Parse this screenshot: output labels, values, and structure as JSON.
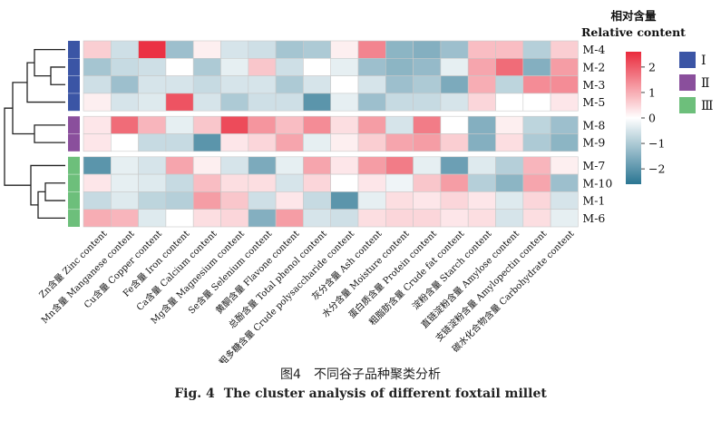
{
  "chart_data": {
    "type": "heatmap",
    "title": "",
    "rows": [
      "M-4",
      "M-2",
      "M-3",
      "M-5",
      "M-8",
      "M-9",
      "M-7",
      "M-10",
      "M-1",
      "M-6"
    ],
    "columns": [
      "Zn含量 Zinc content",
      "Mn含量 Manganese content",
      "Cu含量 Copper content",
      "Fe含量 Iron content",
      "Ca含量 Calcium content",
      "Mg含量 Magnesium content",
      "Se含量 Selenium content",
      "黄酮含量 Flavone content",
      "总酚含量 Total phenol content",
      "粗多糖含量 Crude polysaccharide content",
      "灰分含量 Ash content",
      "水分含量 Moisture content",
      "蛋白质含量 Protein content",
      "粗脂肪含量 Crude fat content",
      "淀粉含量 Starch content",
      "直链淀粉含量 Amylose content",
      "支链淀粉含量 Amylopectin content",
      "碳水化合物含量 Carbohydrate content"
    ],
    "values": [
      [
        0.6,
        -0.6,
        2.5,
        -1.2,
        0.2,
        -0.5,
        -0.6,
        -1.1,
        -1.0,
        0.2,
        1.5,
        -1.4,
        -1.5,
        -1.2,
        0.8,
        0.8,
        -0.9,
        0.6
      ],
      [
        -1.1,
        -0.7,
        -0.6,
        0.0,
        -1.0,
        -0.3,
        0.7,
        -0.6,
        0.0,
        -0.3,
        -1.2,
        -1.4,
        -1.3,
        -0.3,
        1.1,
        1.8,
        -1.5,
        1.2
      ],
      [
        -0.6,
        -1.2,
        -0.5,
        -0.5,
        -0.7,
        -0.5,
        -0.5,
        -1.0,
        -0.5,
        0.0,
        -0.5,
        -1.2,
        -1.0,
        -1.6,
        1.0,
        -0.8,
        1.4,
        1.4
      ],
      [
        0.2,
        -0.5,
        -0.4,
        2.1,
        -0.5,
        -1.0,
        -0.6,
        -0.6,
        -2.0,
        -0.3,
        -1.2,
        -0.7,
        -0.7,
        -0.5,
        0.5,
        0.0,
        0.0,
        0.3
      ],
      [
        0.3,
        1.8,
        0.9,
        -0.3,
        0.7,
        2.2,
        1.3,
        0.8,
        1.4,
        0.4,
        1.2,
        -0.5,
        1.6,
        0.0,
        -1.5,
        0.2,
        -0.8,
        -1.2
      ],
      [
        0.3,
        0.0,
        -0.7,
        -0.7,
        -2.0,
        0.3,
        0.5,
        1.1,
        -0.3,
        0.2,
        0.6,
        1.1,
        1.2,
        0.6,
        -1.5,
        0.4,
        -1.0,
        -1.4
      ],
      [
        -2.0,
        -0.3,
        -0.5,
        1.1,
        0.2,
        -0.5,
        -1.6,
        -0.3,
        1.1,
        0.3,
        1.2,
        1.6,
        -0.3,
        -1.8,
        -0.4,
        -0.9,
        0.9,
        0.2
      ],
      [
        0.3,
        -0.3,
        -0.4,
        -0.7,
        0.8,
        0.4,
        0.4,
        -0.5,
        0.5,
        0.0,
        0.3,
        -0.2,
        0.7,
        1.2,
        -0.9,
        -1.4,
        1.1,
        -1.2
      ],
      [
        -0.7,
        -0.4,
        -0.8,
        -0.9,
        1.2,
        0.7,
        -0.6,
        0.3,
        -0.7,
        -2.0,
        -0.3,
        0.4,
        0.3,
        0.5,
        0.3,
        -0.4,
        0.5,
        -0.5
      ],
      [
        1.0,
        0.9,
        -0.4,
        0.0,
        0.4,
        0.5,
        -1.5,
        1.2,
        -0.5,
        -0.6,
        0.4,
        0.5,
        0.5,
        0.3,
        0.4,
        -0.5,
        0.4,
        -0.3
      ]
    ],
    "groups": [
      {
        "name": "Ⅰ",
        "rows": [
          "M-4",
          "M-2",
          "M-3",
          "M-5"
        ],
        "color": "#3b55a5"
      },
      {
        "name": "Ⅱ",
        "rows": [
          "M-8",
          "M-9"
        ],
        "color": "#8a4f9c"
      },
      {
        "name": "Ⅲ",
        "rows": [
          "M-7",
          "M-10",
          "M-1",
          "M-6"
        ],
        "color": "#6dbf7b"
      }
    ],
    "colorbar": {
      "title_cn": "相对含量",
      "title_en": "Relative content",
      "ticks": [
        2,
        1,
        0,
        -1,
        -2
      ],
      "tick_labels": [
        "2",
        "1",
        "0",
        "−1",
        "−2"
      ],
      "range": [
        -2.6,
        2.6
      ],
      "color_low": "#2a7592",
      "color_mid": "#ffffff",
      "color_high": "#ea2a3c"
    }
  },
  "caption": {
    "cn": "图4　不同谷子品种聚类分析",
    "en_prefix": "Fig. 4",
    "en_text": "The cluster analysis of different foxtail millet"
  }
}
